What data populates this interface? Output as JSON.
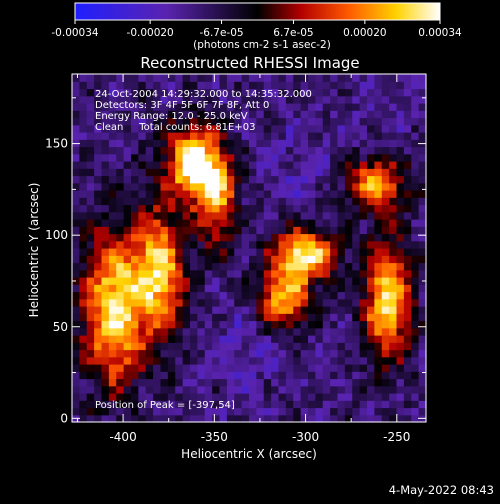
{
  "colorbar": {
    "tick_labels": [
      "-0.00034",
      "-0.00020",
      "-6.7e-05",
      "6.7e-05",
      "0.00020",
      "0.00034"
    ],
    "unit_label": "(photons cm-2 s-1 asec-2)",
    "range": [
      -0.00034,
      0.00034
    ],
    "colors": [
      "#1f1fff",
      "#5a23b0",
      "#000000",
      "#b40000",
      "#ff5a00",
      "#ffd200",
      "#ffffff"
    ]
  },
  "chart_data": {
    "type": "heatmap",
    "title": "Reconstructed RHESSI Image",
    "xlabel": "Heliocentric X (arcsec)",
    "ylabel": "Heliocentric Y (arcsec)",
    "xlim": [
      -428,
      -234
    ],
    "ylim": [
      -2,
      188
    ],
    "xticks": [
      -400,
      -350,
      -300,
      -250
    ],
    "yticks": [
      0,
      50,
      100,
      150
    ],
    "value_range": [
      -0.00034,
      0.00034
    ],
    "grid": false,
    "peak": [
      -397,
      54
    ],
    "bright_regions": [
      {
        "x": -405,
        "y": 60,
        "sx": 12,
        "sy": 30,
        "v": 0.0003
      },
      {
        "x": -380,
        "y": 80,
        "sx": 10,
        "sy": 25,
        "v": 0.00026
      },
      {
        "x": -362,
        "y": 140,
        "sx": 10,
        "sy": 14,
        "v": 0.00034
      },
      {
        "x": -348,
        "y": 120,
        "sx": 8,
        "sy": 18,
        "v": 0.0002
      },
      {
        "x": -300,
        "y": 90,
        "sx": 12,
        "sy": 10,
        "v": 0.00032
      },
      {
        "x": -312,
        "y": 65,
        "sx": 10,
        "sy": 12,
        "v": 0.00024
      },
      {
        "x": -255,
        "y": 65,
        "sx": 9,
        "sy": 22,
        "v": 0.0003
      },
      {
        "x": -262,
        "y": 128,
        "sx": 12,
        "sy": 10,
        "v": 0.00022
      }
    ],
    "dim_regions": [
      {
        "x": -300,
        "y": 135,
        "sx": 18,
        "sy": 18,
        "v": -0.00016
      },
      {
        "x": -330,
        "y": 40,
        "sx": 20,
        "sy": 14,
        "v": -0.00018
      },
      {
        "x": -260,
        "y": 170,
        "sx": 14,
        "sy": 10,
        "v": -0.00014
      },
      {
        "x": -390,
        "y": 15,
        "sx": 14,
        "sy": 10,
        "v": -0.00012
      }
    ]
  },
  "annotations": {
    "time": "24-Oct-2004 14:29:32.000 to 14:35:32.000",
    "detectors": "Detectors: 3F 4F 5F 6F 7F 8F, Att 0",
    "energy": "Energy Range: 12.0 - 25.0 keV",
    "clean": "Clean     Total counts: 6.81E+03",
    "peak": "Position of Peak = [-397,54]"
  },
  "footer": {
    "date": "4-May-2022 08:43"
  }
}
